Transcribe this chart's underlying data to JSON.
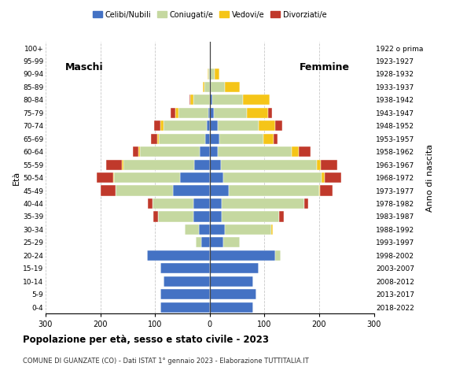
{
  "age_groups": [
    "0-4",
    "5-9",
    "10-14",
    "15-19",
    "20-24",
    "25-29",
    "30-34",
    "35-39",
    "40-44",
    "45-49",
    "50-54",
    "55-59",
    "60-64",
    "65-69",
    "70-74",
    "75-79",
    "80-84",
    "85-89",
    "90-94",
    "95-99",
    "100+"
  ],
  "birth_years": [
    "2018-2022",
    "2013-2017",
    "2008-2012",
    "2003-2007",
    "1998-2002",
    "1993-1997",
    "1988-1992",
    "1983-1987",
    "1978-1982",
    "1973-1977",
    "1968-1972",
    "1963-1967",
    "1958-1962",
    "1953-1957",
    "1948-1952",
    "1943-1947",
    "1938-1942",
    "1933-1937",
    "1928-1932",
    "1923-1927",
    "1922 o prima"
  ],
  "male_celibe": [
    90,
    90,
    85,
    90,
    115,
    15,
    20,
    30,
    30,
    67,
    55,
    28,
    18,
    8,
    5,
    2,
    0,
    0,
    0,
    0,
    0
  ],
  "male_coniugato": [
    0,
    0,
    0,
    0,
    0,
    10,
    25,
    65,
    75,
    105,
    120,
    130,
    110,
    85,
    80,
    55,
    30,
    10,
    3,
    0,
    0
  ],
  "male_vedovo": [
    0,
    0,
    0,
    0,
    0,
    0,
    0,
    0,
    0,
    0,
    1,
    2,
    2,
    3,
    5,
    6,
    5,
    2,
    1,
    0,
    0
  ],
  "male_divorziato": [
    0,
    0,
    0,
    0,
    0,
    0,
    0,
    8,
    8,
    28,
    30,
    30,
    10,
    12,
    12,
    8,
    2,
    0,
    0,
    0,
    0
  ],
  "female_nubile": [
    80,
    85,
    80,
    90,
    120,
    25,
    28,
    22,
    22,
    35,
    25,
    20,
    15,
    18,
    15,
    8,
    5,
    2,
    1,
    0,
    0
  ],
  "female_coniugata": [
    0,
    0,
    0,
    0,
    10,
    30,
    85,
    105,
    150,
    165,
    180,
    175,
    135,
    80,
    75,
    60,
    55,
    25,
    8,
    2,
    0
  ],
  "female_vedova": [
    0,
    0,
    0,
    0,
    0,
    0,
    2,
    0,
    0,
    2,
    5,
    8,
    12,
    18,
    30,
    38,
    50,
    28,
    8,
    0,
    0
  ],
  "female_divorziata": [
    0,
    0,
    0,
    0,
    0,
    0,
    0,
    8,
    8,
    22,
    30,
    30,
    22,
    8,
    12,
    8,
    0,
    0,
    0,
    0,
    0
  ],
  "col_celibe": "#4472c4",
  "col_coniugato": "#c5d8a0",
  "col_vedovo": "#f5c518",
  "col_divorziato": "#c0392b",
  "legend_labels": [
    "Celibi/Nubili",
    "Coniugati/e",
    "Vedovi/e",
    "Divorziati/e"
  ],
  "title": "Popolazione per età, sesso e stato civile - 2023",
  "subtitle": "COMUNE DI GUANZATE (CO) - Dati ISTAT 1° gennaio 2023 - Elaborazione TUTTITALIA.IT",
  "ylabel_left": "Età",
  "ylabel_right": "Anno di nascita",
  "label_maschi": "Maschi",
  "label_femmine": "Femmine",
  "xlim": 300,
  "bg_color": "#ffffff",
  "grid_color": "#c8c8c8"
}
